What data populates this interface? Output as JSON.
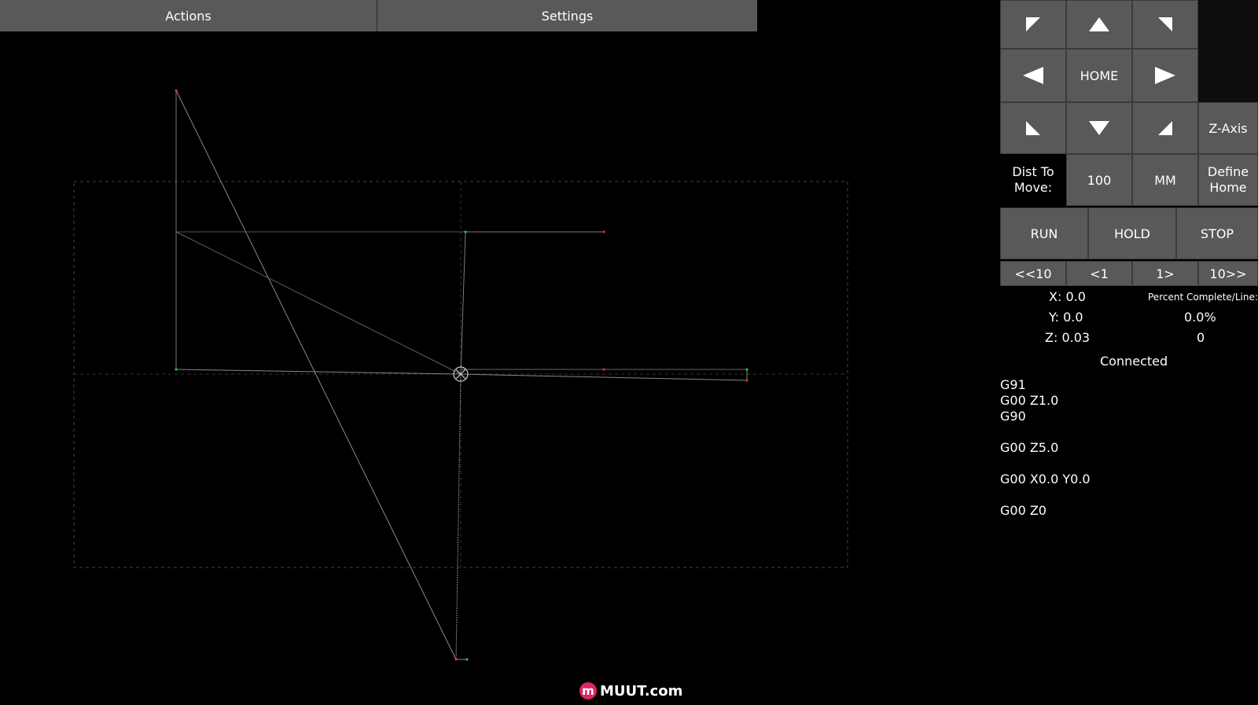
{
  "topbar": {
    "actions": "Actions",
    "settings": "Settings"
  },
  "jog": {
    "home": "HOME",
    "z_axis": "Z-Axis",
    "dist_label_1": "Dist To",
    "dist_label_2": "Move:",
    "dist_value": "100",
    "units": "MM",
    "define_home_1": "Define",
    "define_home_2": "Home"
  },
  "controls": {
    "run": "RUN",
    "hold": "HOLD",
    "stop": "STOP"
  },
  "step": {
    "back10": "<<10",
    "back1": "<1",
    "fwd1": "1>",
    "fwd10": "10>>"
  },
  "readout": {
    "x": "X: 0.0",
    "y": "Y: 0.0",
    "z": "Z: 0.03",
    "percent_label": "Percent Complete/Line:",
    "percent": "0.0%",
    "line": "0",
    "status": "Connected"
  },
  "gcode": [
    "G91",
    "G00 Z1.0",
    "G90",
    "",
    "G00 Z5.0",
    "",
    "G00 X0.0 Y0.0",
    "",
    "G00 Z0"
  ],
  "logo": {
    "mark": "m",
    "text": "MUUT.com"
  },
  "colors": {
    "button": "#595959",
    "background": "#000000",
    "logo": "#e0245e"
  }
}
